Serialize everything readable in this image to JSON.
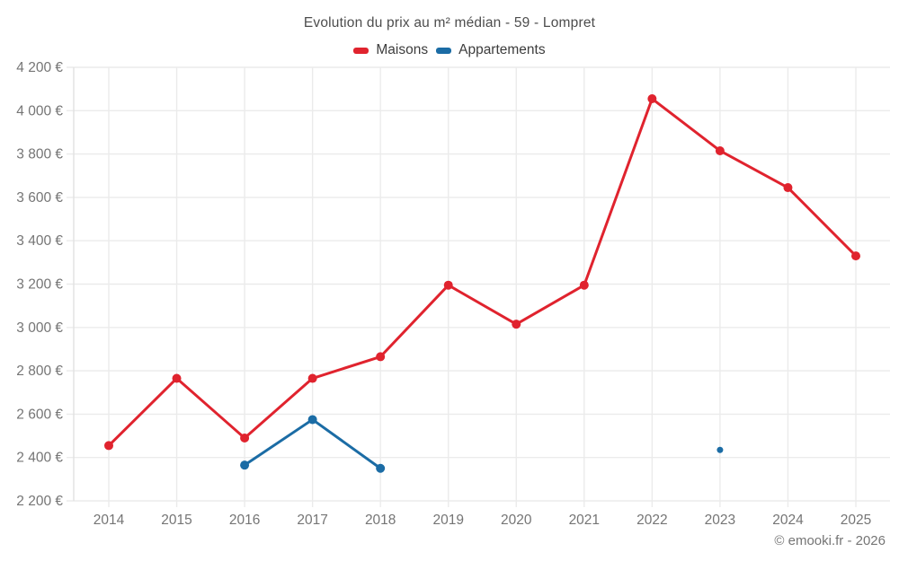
{
  "footer": {
    "credit": "© emooki.fr - 2026"
  },
  "colors": {
    "maisons": "#e0232e",
    "appartements": "#1b6ca5",
    "gridline": "#ebebeb",
    "axis_line": "#e2e2e2",
    "tick_label": "#757575",
    "title_text": "#4d4d4d",
    "legend_text": "#3d3d3d"
  },
  "chart_data": {
    "type": "line",
    "title": "Evolution du prix au m² médian - 59 - Lompret",
    "xlabel": "",
    "ylabel": "",
    "x_labels": [
      "2014",
      "2015",
      "2016",
      "2017",
      "2018",
      "2019",
      "2020",
      "2021",
      "2022",
      "2023",
      "2024",
      "2025"
    ],
    "ylim": [
      2200,
      4200
    ],
    "ytick_step": 200,
    "yticks": [
      2200,
      2400,
      2600,
      2800,
      3000,
      3200,
      3400,
      3600,
      3800,
      4000,
      4200
    ],
    "ytick_labels": [
      "2 200 €",
      "2 400 €",
      "2 600 €",
      "2 800 €",
      "3 000 €",
      "3 200 €",
      "3 400 €",
      "3 600 €",
      "3 800 €",
      "4 000 €",
      "4 200 €"
    ],
    "grid": true,
    "legend_position": "top",
    "series": [
      {
        "name": "Maisons",
        "color": "#e0232e",
        "values": [
          2455,
          2765,
          2490,
          2765,
          2865,
          3195,
          3015,
          3195,
          4055,
          3815,
          3645,
          3330
        ]
      },
      {
        "name": "Appartements",
        "color": "#1b6ca5",
        "values": [
          null,
          null,
          2365,
          2575,
          2350,
          null,
          null,
          null,
          null,
          2435,
          null,
          null
        ]
      }
    ]
  }
}
